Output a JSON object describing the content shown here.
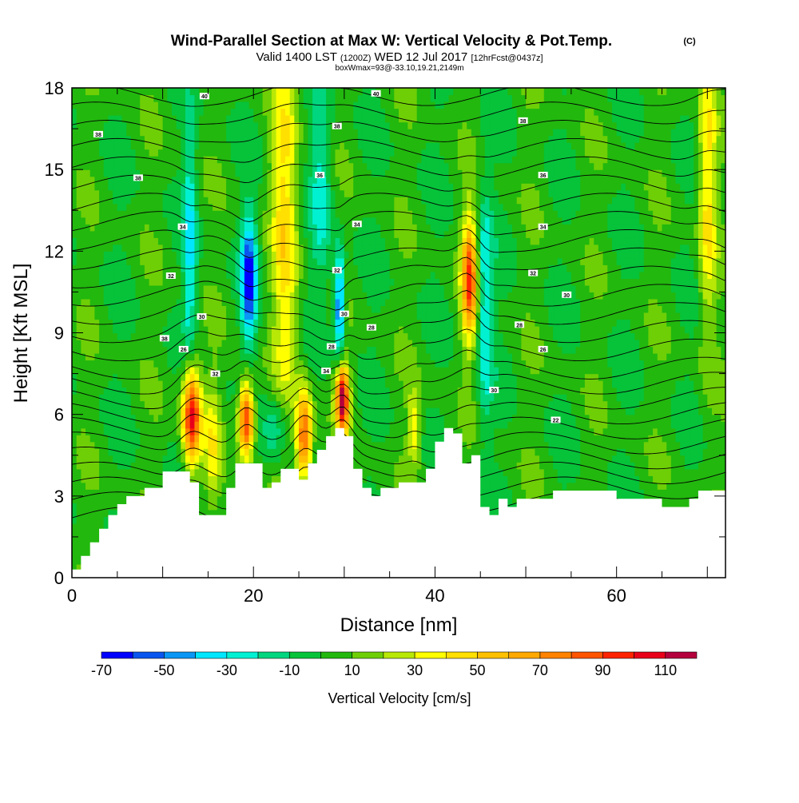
{
  "chart_data": {
    "type": "heatmap",
    "title": "Wind-Parallel Section at Max W: Vertical Velocity & Pot.Temp.",
    "copyright": "(C)",
    "subtitle_main": "Valid 1400 LST",
    "subtitle_utc": "(1200Z)",
    "subtitle_date": "WED 12 Jul 2017",
    "subtitle_fcst": "[12hrFcst@0437z]",
    "subtitle_box": "boxWmax=93@-33.10,19.21,2149m",
    "xlabel": "Distance [nm]",
    "ylabel": "Height [Kft MSL]",
    "xlim": [
      0,
      72
    ],
    "ylim": [
      0,
      18
    ],
    "xticks": [
      0,
      20,
      40,
      60
    ],
    "yticks": [
      0,
      3,
      6,
      9,
      12,
      15,
      18
    ],
    "colorbar": {
      "label": "Vertical Velocity [cm/s]",
      "edges": [
        -70,
        -60,
        -50,
        -40,
        -30,
        -20,
        -10,
        0,
        10,
        20,
        30,
        40,
        50,
        60,
        70,
        80,
        90,
        100,
        110,
        120
      ],
      "tick_labels": [
        "-70",
        "-50",
        "-30",
        "-10",
        "10",
        "30",
        "50",
        "70",
        "90",
        "110"
      ],
      "colors": [
        "#0000ff",
        "#0a55ef",
        "#0a96f5",
        "#00e6ff",
        "#00f0d2",
        "#00d67f",
        "#06c33a",
        "#22b80e",
        "#6ecf06",
        "#b8e806",
        "#ffff00",
        "#ffe000",
        "#ffc000",
        "#ffa800",
        "#ff8200",
        "#ff5400",
        "#ff2200",
        "#e8001a",
        "#b4003c"
      ]
    },
    "terrain_kft": {
      "distance_nm": [
        0,
        1,
        2,
        3,
        4,
        5,
        6,
        8,
        10,
        12,
        13,
        14,
        16,
        17,
        18,
        20,
        21,
        22,
        23,
        25,
        26,
        27,
        28,
        29,
        30,
        31,
        32,
        33,
        34,
        36,
        38,
        39,
        40,
        41,
        42,
        43,
        44,
        45,
        46,
        47,
        48,
        49,
        53,
        57,
        60,
        63,
        65,
        67,
        68,
        69,
        72
      ],
      "height": [
        0.3,
        0.8,
        1.3,
        1.8,
        2.3,
        2.7,
        3.0,
        3.3,
        3.9,
        3.9,
        3.5,
        2.3,
        2.3,
        3.3,
        4.2,
        4.2,
        3.3,
        3.5,
        4.0,
        3.6,
        4.2,
        4.7,
        5.2,
        5.5,
        5.2,
        4.0,
        3.3,
        3.0,
        3.3,
        3.5,
        3.5,
        4.0,
        5.0,
        5.5,
        5.3,
        4.2,
        4.5,
        2.6,
        2.3,
        2.9,
        2.6,
        2.9,
        3.2,
        3.2,
        2.9,
        2.9,
        2.6,
        2.6,
        2.9,
        3.2,
        3.2
      ]
    },
    "w_features": [
      {
        "x_nm": 13.2,
        "z_kft": 6.0,
        "w": 105,
        "sx": 0.7,
        "sz": 1.3
      },
      {
        "x_nm": 19.2,
        "z_kft": 5.8,
        "w": 95,
        "sx": 0.6,
        "sz": 1.0
      },
      {
        "x_nm": 25.6,
        "z_kft": 5.2,
        "w": 85,
        "sx": 0.6,
        "sz": 1.2
      },
      {
        "x_nm": 29.8,
        "z_kft": 6.6,
        "w": 115,
        "sx": 0.5,
        "sz": 0.9
      },
      {
        "x_nm": 43.8,
        "z_kft": 11.0,
        "w": 85,
        "sx": 0.6,
        "sz": 1.6
      },
      {
        "x_nm": 23.5,
        "z_kft": 13.0,
        "w": 40,
        "sx": 1.0,
        "sz": 5.0
      },
      {
        "x_nm": 70.0,
        "z_kft": 14.5,
        "w": 40,
        "sx": 0.7,
        "sz": 4.0
      },
      {
        "x_nm": 15.5,
        "z_kft": 5.0,
        "w": 30,
        "sx": 0.6,
        "sz": 1.5
      },
      {
        "x_nm": 37.7,
        "z_kft": 5.5,
        "w": 35,
        "sx": 0.5,
        "sz": 1.0
      },
      {
        "x_nm": 13.0,
        "z_kft": 12.0,
        "w": -35,
        "sx": 0.5,
        "sz": 3.0
      },
      {
        "x_nm": 19.5,
        "z_kft": 11.0,
        "w": -65,
        "sx": 0.6,
        "sz": 1.6
      },
      {
        "x_nm": 29.5,
        "z_kft": 10.0,
        "w": -65,
        "sx": 0.4,
        "sz": 1.4
      },
      {
        "x_nm": 45.5,
        "z_kft": 10.0,
        "w": -35,
        "sx": 0.6,
        "sz": 3.0
      },
      {
        "x_nm": 22.5,
        "z_kft": 5.5,
        "w": -25,
        "sx": 1.0,
        "sz": 1.0
      },
      {
        "x_nm": 27.5,
        "z_kft": 14.5,
        "w": -25,
        "sx": 0.8,
        "sz": 3.0
      }
    ],
    "theta_labels": [
      {
        "x_nm": 14.6,
        "z_kft": 17.7,
        "text": "40"
      },
      {
        "x_nm": 33.5,
        "z_kft": 17.8,
        "text": "40"
      },
      {
        "x_nm": 2.9,
        "z_kft": 16.3,
        "text": "38"
      },
      {
        "x_nm": 29.2,
        "z_kft": 16.6,
        "text": "38"
      },
      {
        "x_nm": 49.7,
        "z_kft": 16.8,
        "text": "38"
      },
      {
        "x_nm": 7.3,
        "z_kft": 14.7,
        "text": "38"
      },
      {
        "x_nm": 27.3,
        "z_kft": 14.8,
        "text": "36"
      },
      {
        "x_nm": 51.9,
        "z_kft": 14.8,
        "text": "36"
      },
      {
        "x_nm": 12.2,
        "z_kft": 12.9,
        "text": "34"
      },
      {
        "x_nm": 31.4,
        "z_kft": 13.0,
        "text": "34"
      },
      {
        "x_nm": 51.9,
        "z_kft": 12.9,
        "text": "34"
      },
      {
        "x_nm": 10.9,
        "z_kft": 11.1,
        "text": "32"
      },
      {
        "x_nm": 29.2,
        "z_kft": 11.3,
        "text": "32"
      },
      {
        "x_nm": 50.8,
        "z_kft": 11.2,
        "text": "32"
      },
      {
        "x_nm": 54.5,
        "z_kft": 10.4,
        "text": "30"
      },
      {
        "x_nm": 14.3,
        "z_kft": 9.6,
        "text": "30"
      },
      {
        "x_nm": 30.0,
        "z_kft": 9.7,
        "text": "30"
      },
      {
        "x_nm": 33.0,
        "z_kft": 9.2,
        "text": "28"
      },
      {
        "x_nm": 49.3,
        "z_kft": 9.3,
        "text": "28"
      },
      {
        "x_nm": 10.2,
        "z_kft": 8.8,
        "text": "38"
      },
      {
        "x_nm": 12.3,
        "z_kft": 8.4,
        "text": "26"
      },
      {
        "x_nm": 51.9,
        "z_kft": 8.4,
        "text": "26"
      },
      {
        "x_nm": 28.6,
        "z_kft": 8.5,
        "text": "28"
      },
      {
        "x_nm": 28.0,
        "z_kft": 7.6,
        "text": "34"
      },
      {
        "x_nm": 15.8,
        "z_kft": 7.5,
        "text": "32"
      },
      {
        "x_nm": 46.5,
        "z_kft": 6.9,
        "text": "30"
      },
      {
        "x_nm": 53.3,
        "z_kft": 5.8,
        "text": "22"
      }
    ]
  }
}
